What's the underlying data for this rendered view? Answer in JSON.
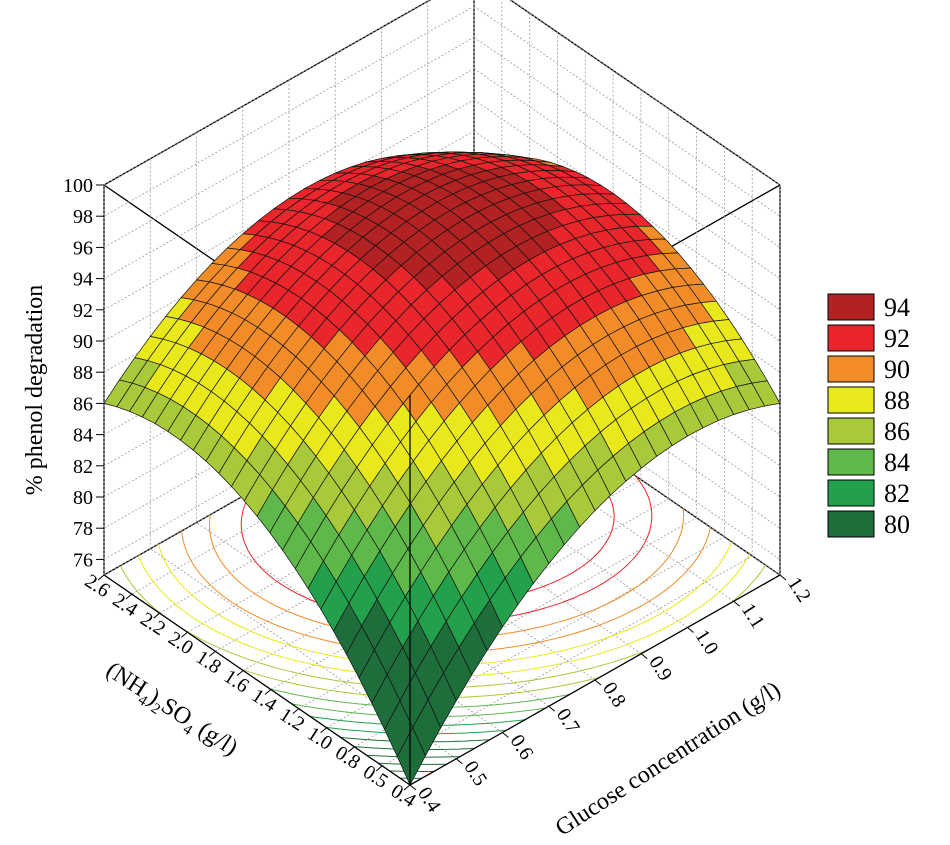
{
  "chart_data": {
    "type": "surface3d",
    "title": "",
    "zlabel": "% phenol degradation",
    "xlabel": "Glucose concentration (g/l)",
    "ylabel_parts": [
      "(NH",
      "4",
      ")",
      "2",
      "SO",
      "4",
      " (g/l)"
    ],
    "x_ticks": [
      "0.4",
      "0.5",
      "0.6",
      "0.7",
      "0.8",
      "0.9",
      "1.0",
      "1.1",
      "1.2"
    ],
    "y_ticks": [
      "0.4",
      "0.5",
      "0.8",
      "1.0",
      "1.2",
      "1.4",
      "1.6",
      "1.8",
      "2.0",
      "2.2",
      "2.4",
      "2.6"
    ],
    "z_ticks": [
      "76",
      "78",
      "80",
      "82",
      "84",
      "86",
      "88",
      "90",
      "92",
      "94",
      "96",
      "98",
      "100"
    ],
    "zlim": [
      75,
      100
    ],
    "grid": true,
    "legend_position": "right",
    "legend": [
      {
        "label": "94",
        "color": "#b22222"
      },
      {
        "label": "92",
        "color": "#e8262b"
      },
      {
        "label": "90",
        "color": "#f28c28"
      },
      {
        "label": "88",
        "color": "#e8e81a"
      },
      {
        "label": "86",
        "color": "#a7c93a"
      },
      {
        "label": "84",
        "color": "#5fb84a"
      },
      {
        "label": "82",
        "color": "#22a04b"
      },
      {
        "label": "80",
        "color": "#1e6e3c"
      }
    ],
    "surface_samples": [
      {
        "glucose": 0.4,
        "nh4so4": 0.4,
        "degradation": 75
      },
      {
        "glucose": 1.2,
        "nh4so4": 0.4,
        "degradation": 86
      },
      {
        "glucose": 0.4,
        "nh4so4": 2.6,
        "degradation": 86
      },
      {
        "glucose": 1.2,
        "nh4so4": 2.6,
        "degradation": 88
      },
      {
        "glucose": 0.9,
        "nh4so4": 1.8,
        "degradation": 95
      }
    ]
  }
}
